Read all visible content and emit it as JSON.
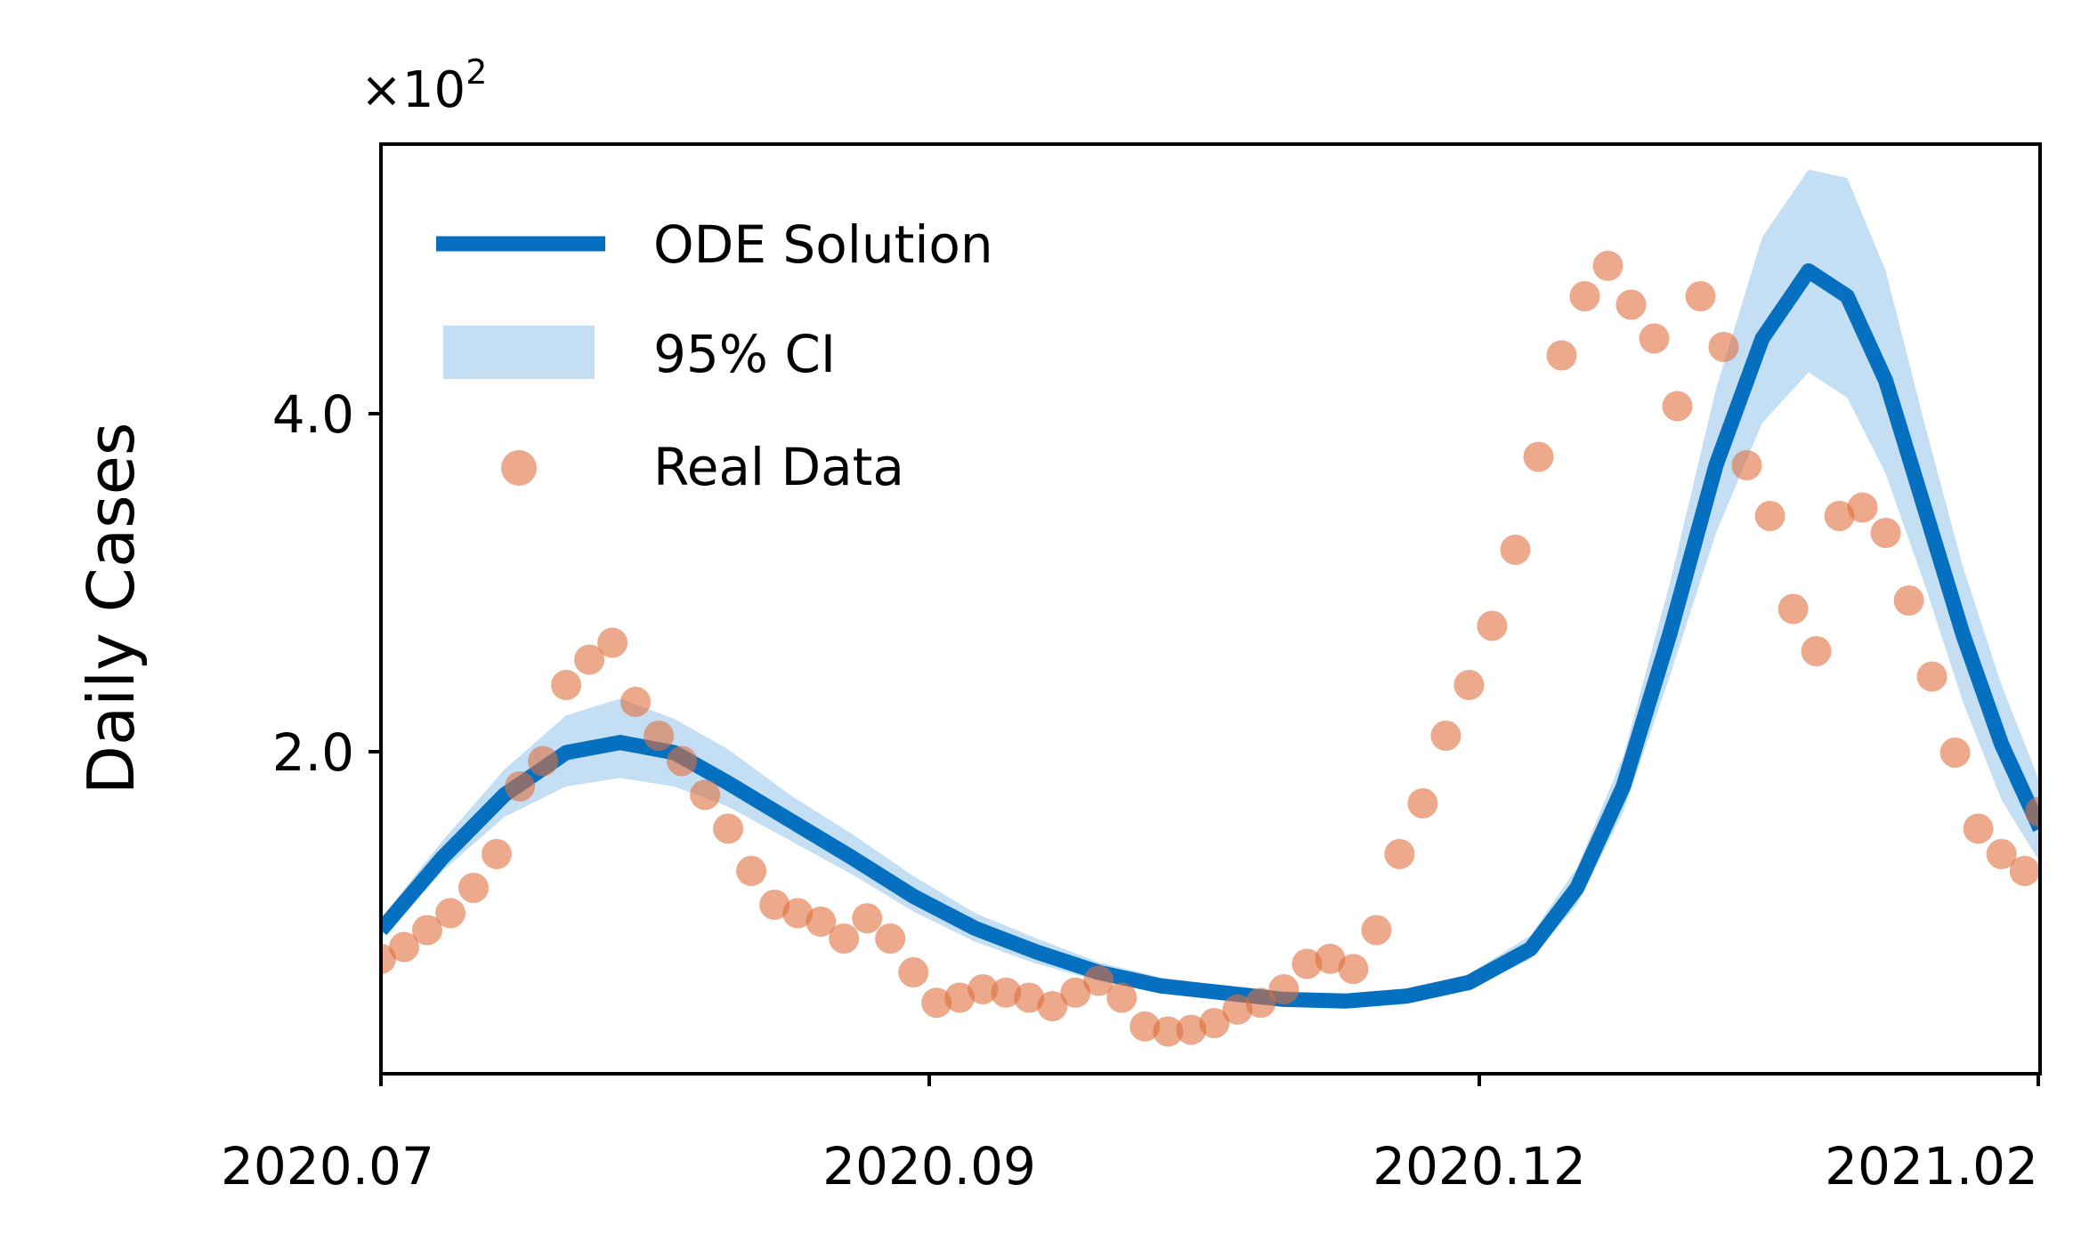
{
  "chart_data": {
    "type": "line",
    "xlabel": "",
    "ylabel": "Daily Cases",
    "y_multiplier": "×10",
    "y_multiplier_exp": "2",
    "xlim": [
      "2020-07-01",
      "2021-02-01"
    ],
    "ylim": [
      0.0,
      5.5
    ],
    "yticks": [
      2.0,
      4.0
    ],
    "ytick_labels": [
      "2.0",
      "4.0"
    ],
    "xticks": [
      "2020-07-01",
      "2020-09-01",
      "2020-12-01",
      "2021-02-01"
    ],
    "xtick_labels": [
      "2020.07",
      "2020.09",
      "2020.12",
      "2021.02"
    ],
    "grid": false,
    "legend_position": "top-left",
    "colors": {
      "ode": "#0570c0",
      "ci": "#c4dff4",
      "data": "#e0703e"
    },
    "legend": [
      "ODE Solution",
      "95% CI",
      "Real Data"
    ],
    "ode_solution": {
      "name": "ODE Solution",
      "x": [
        "2020-07-01",
        "2020-07-09",
        "2020-07-17",
        "2020-07-25",
        "2020-08-01",
        "2020-08-08",
        "2020-08-15",
        "2020-08-23",
        "2020-08-31",
        "2020-09-08",
        "2020-09-16",
        "2020-09-24",
        "2020-10-02",
        "2020-10-10",
        "2020-10-18",
        "2020-10-26",
        "2020-11-03",
        "2020-11-11",
        "2020-11-19",
        "2020-11-27",
        "2020-12-03",
        "2020-12-09",
        "2020-12-15",
        "2020-12-21",
        "2020-12-27",
        "2021-01-02",
        "2021-01-07",
        "2021-01-12",
        "2021-01-17",
        "2021-01-22",
        "2021-01-27",
        "2021-02-01"
      ],
      "y": [
        0.85,
        1.28,
        1.65,
        1.9,
        1.96,
        1.9,
        1.72,
        1.5,
        1.28,
        1.05,
        0.86,
        0.72,
        0.6,
        0.52,
        0.48,
        0.44,
        0.43,
        0.46,
        0.54,
        0.74,
        1.1,
        1.7,
        2.6,
        3.6,
        4.35,
        4.75,
        4.6,
        4.1,
        3.35,
        2.6,
        1.95,
        1.45
      ]
    },
    "ci_band": {
      "name": "95% CI",
      "x": [
        "2020-07-01",
        "2020-07-09",
        "2020-07-17",
        "2020-07-25",
        "2020-08-01",
        "2020-08-08",
        "2020-08-15",
        "2020-08-23",
        "2020-08-31",
        "2020-09-08",
        "2020-09-16",
        "2020-09-24",
        "2020-10-02",
        "2020-10-10",
        "2020-10-18",
        "2020-10-26",
        "2020-11-03",
        "2020-11-11",
        "2020-11-19",
        "2020-11-27",
        "2020-12-03",
        "2020-12-09",
        "2020-12-15",
        "2020-12-21",
        "2020-12-27",
        "2021-01-02",
        "2021-01-07",
        "2021-01-12",
        "2021-01-17",
        "2021-01-22",
        "2021-01-27",
        "2021-02-01"
      ],
      "lower": [
        0.8,
        1.2,
        1.52,
        1.7,
        1.75,
        1.7,
        1.58,
        1.38,
        1.18,
        0.96,
        0.78,
        0.65,
        0.55,
        0.48,
        0.44,
        0.41,
        0.4,
        0.42,
        0.5,
        0.68,
        1.0,
        1.55,
        2.35,
        3.2,
        3.85,
        4.15,
        4.0,
        3.55,
        2.9,
        2.2,
        1.62,
        1.25
      ],
      "upper": [
        0.92,
        1.38,
        1.8,
        2.12,
        2.22,
        2.1,
        1.92,
        1.65,
        1.42,
        1.17,
        0.95,
        0.8,
        0.66,
        0.57,
        0.52,
        0.48,
        0.47,
        0.5,
        0.59,
        0.82,
        1.22,
        1.88,
        2.9,
        4.05,
        4.95,
        5.35,
        5.3,
        4.75,
        3.85,
        3.0,
        2.3,
        1.72
      ]
    },
    "real_data": {
      "name": "Real Data",
      "x": [
        "2020-07-01",
        "2020-07-04",
        "2020-07-07",
        "2020-07-10",
        "2020-07-13",
        "2020-07-16",
        "2020-07-19",
        "2020-07-22",
        "2020-07-25",
        "2020-07-28",
        "2020-07-31",
        "2020-08-03",
        "2020-08-06",
        "2020-08-09",
        "2020-08-12",
        "2020-08-15",
        "2020-08-18",
        "2020-08-21",
        "2020-08-24",
        "2020-08-27",
        "2020-08-30",
        "2020-09-02",
        "2020-09-05",
        "2020-09-08",
        "2020-09-11",
        "2020-09-14",
        "2020-09-17",
        "2020-09-20",
        "2020-09-23",
        "2020-09-26",
        "2020-09-29",
        "2020-10-02",
        "2020-10-05",
        "2020-10-08",
        "2020-10-11",
        "2020-10-14",
        "2020-10-17",
        "2020-10-20",
        "2020-10-23",
        "2020-10-26",
        "2020-10-29",
        "2020-11-01",
        "2020-11-04",
        "2020-11-07",
        "2020-11-10",
        "2020-11-13",
        "2020-11-16",
        "2020-11-19",
        "2020-11-22",
        "2020-11-25",
        "2020-11-28",
        "2020-12-01",
        "2020-12-04",
        "2020-12-07",
        "2020-12-10",
        "2020-12-13",
        "2020-12-16",
        "2020-12-19",
        "2020-12-22",
        "2020-12-25",
        "2020-12-28",
        "2020-12-31",
        "2021-01-03",
        "2021-01-06",
        "2021-01-09",
        "2021-01-12",
        "2021-01-15",
        "2021-01-18",
        "2021-01-21",
        "2021-01-24",
        "2021-01-27",
        "2021-01-30",
        "2021-02-01"
      ],
      "y": [
        0.68,
        0.75,
        0.85,
        0.95,
        1.1,
        1.3,
        1.7,
        1.85,
        2.3,
        2.45,
        2.55,
        2.2,
        2.0,
        1.85,
        1.65,
        1.45,
        1.2,
        1.0,
        0.95,
        0.9,
        0.8,
        0.92,
        0.8,
        0.6,
        0.42,
        0.45,
        0.5,
        0.48,
        0.45,
        0.4,
        0.48,
        0.55,
        0.45,
        0.28,
        0.25,
        0.26,
        0.3,
        0.38,
        0.42,
        0.5,
        0.65,
        0.68,
        0.62,
        0.85,
        1.3,
        1.6,
        2.0,
        2.3,
        2.65,
        3.1,
        3.65,
        4.25,
        4.6,
        4.78,
        4.55,
        4.35,
        3.95,
        4.6,
        4.3,
        3.6,
        3.3,
        2.75,
        2.5,
        3.3,
        3.35,
        3.2,
        2.8,
        2.35,
        1.9,
        1.45,
        1.3,
        1.2,
        1.55
      ]
    }
  }
}
